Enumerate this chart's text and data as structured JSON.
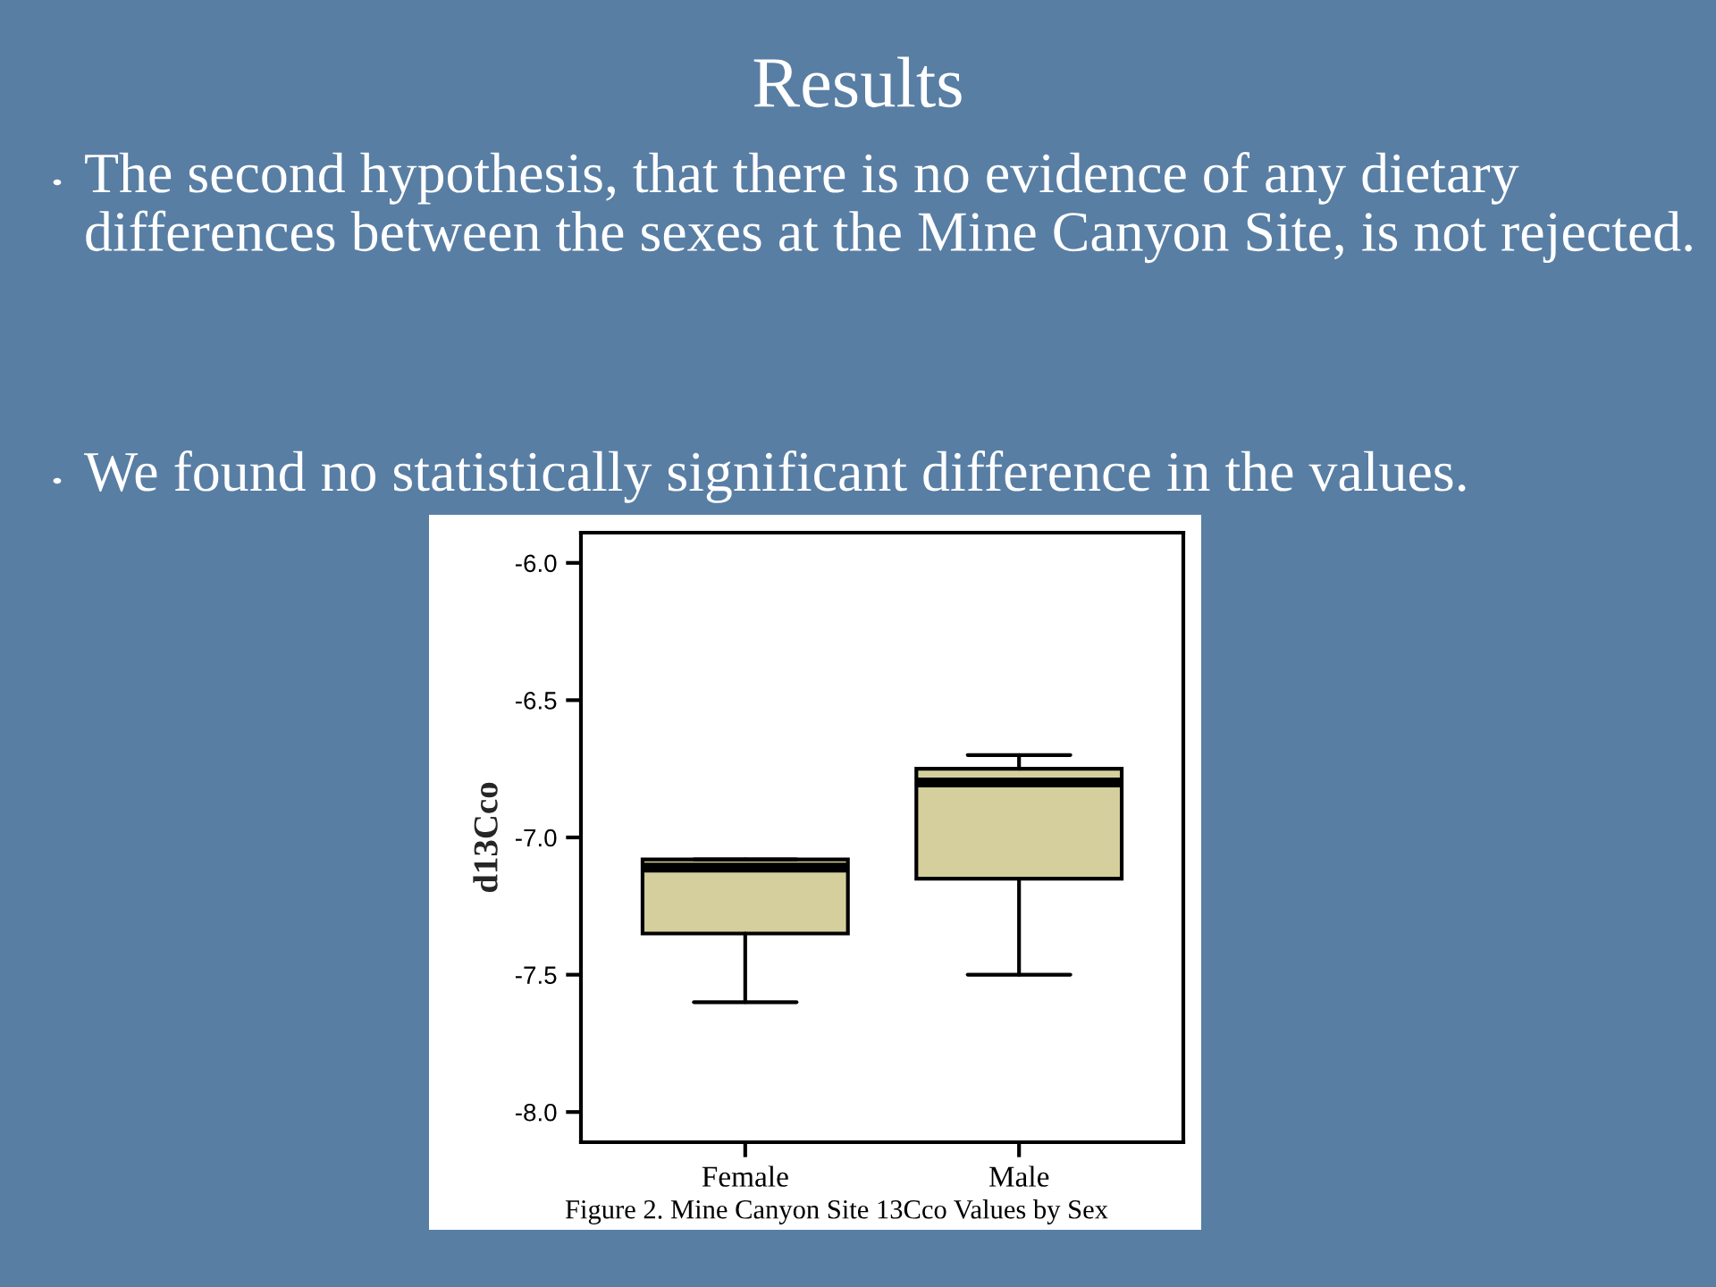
{
  "chart_data": {
    "type": "box",
    "title": "Results",
    "categories": [
      "Female",
      "Male"
    ],
    "ylabel": "d13Cco",
    "boxes": [
      {
        "low": -7.6,
        "q1": -7.35,
        "median": -7.11,
        "q3": -7.08,
        "high": -7.08
      },
      {
        "low": -7.5,
        "q1": -7.15,
        "median": -6.8,
        "q3": -6.75,
        "high": -6.7
      }
    ],
    "color": "#d4cf9c",
    "ylim": [
      -8.11,
      -5.89
    ],
    "yticks": [
      {
        "value": -8.0,
        "label": "-8.0"
      },
      {
        "value": -7.5,
        "label": "-7.5"
      },
      {
        "value": -7.0,
        "label": "-7.0"
      },
      {
        "value": -6.5,
        "label": "-6.5"
      },
      {
        "value": -6.0,
        "label": "-6.0"
      }
    ],
    "grid": false,
    "annotations": [
      "The second hypothesis, that there is no evidence of any dietary differences between the sexes at the Mine Canyon Site, is not rejected.",
      "We found no statistically significant difference in the values.",
      "Figure 2. Mine Canyon Site 13Cco Values by Sex"
    ]
  }
}
